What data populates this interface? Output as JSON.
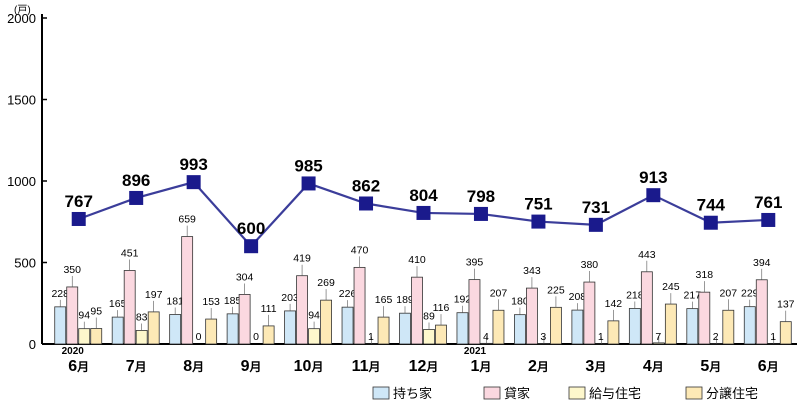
{
  "chart_data": {
    "type": "bar",
    "unit_label": "(戸)",
    "yticks": [
      "0",
      "500",
      "1000",
      "1500",
      "2000"
    ],
    "ylim": [
      0,
      2000
    ],
    "categories": [
      {
        "num": "6",
        "suffix": "月"
      },
      {
        "num": "7",
        "suffix": "月"
      },
      {
        "num": "8",
        "suffix": "月"
      },
      {
        "num": "9",
        "suffix": "月"
      },
      {
        "num": "10",
        "suffix": "月"
      },
      {
        "num": "11",
        "suffix": "月"
      },
      {
        "num": "12",
        "suffix": "月"
      },
      {
        "num": "1",
        "suffix": "月"
      },
      {
        "num": "2",
        "suffix": "月"
      },
      {
        "num": "3",
        "suffix": "月"
      },
      {
        "num": "4",
        "suffix": "月"
      },
      {
        "num": "5",
        "suffix": "月"
      },
      {
        "num": "6",
        "suffix": "月"
      }
    ],
    "year_labels": [
      {
        "index": 0,
        "text": "2020"
      },
      {
        "index": 7,
        "text": "2021"
      }
    ],
    "series": [
      {
        "name": "持ち家",
        "color": "#cfe7f7",
        "values": [
          228,
          165,
          181,
          185,
          203,
          226,
          189,
          192,
          180,
          208,
          218,
          217,
          229
        ]
      },
      {
        "name": "貸家",
        "color": "#fbd8e0",
        "values": [
          350,
          451,
          659,
          304,
          419,
          470,
          410,
          395,
          343,
          380,
          443,
          318,
          394
        ]
      },
      {
        "name": "給与住宅",
        "color": "#fdf7cc",
        "values": [
          94,
          83,
          0,
          0,
          94,
          1,
          89,
          4,
          3,
          1,
          7,
          2,
          1
        ]
      },
      {
        "name": "分譲住宅",
        "color": "#fde9b6",
        "values": [
          95,
          197,
          153,
          111,
          269,
          165,
          116,
          207,
          225,
          142,
          245,
          207,
          137
        ]
      }
    ],
    "total": {
      "values": [
        767,
        896,
        993,
        600,
        985,
        862,
        804,
        798,
        751,
        731,
        913,
        744,
        761
      ],
      "line_color": "#3b3d9a",
      "marker_color": "#1a1a8c"
    }
  }
}
